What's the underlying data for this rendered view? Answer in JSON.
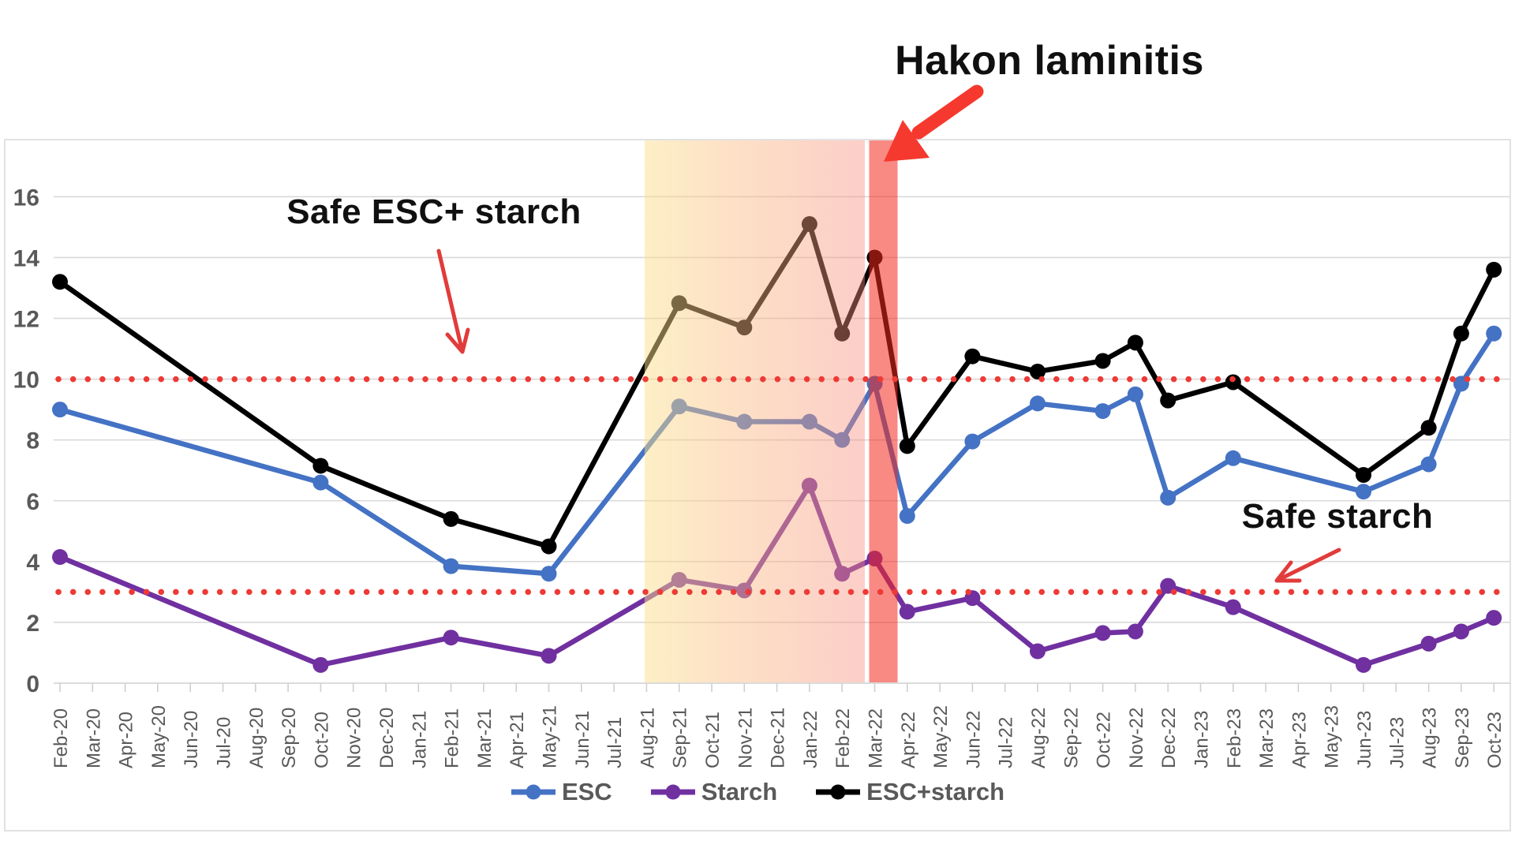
{
  "annotations": {
    "event": {
      "text": "Hakon laminitis"
    },
    "safe_esc": {
      "text": "Safe ESC+ starch"
    },
    "safe_starch": {
      "text": "Safe starch"
    }
  },
  "legend": [
    {
      "label": "ESC",
      "color": "#4472C4"
    },
    {
      "label": "Starch",
      "color": "#7030A0"
    },
    {
      "label": "ESC+starch",
      "color": "#000000"
    }
  ],
  "chart_data": {
    "type": "line",
    "title": "",
    "xlabel": "",
    "ylabel": "",
    "ylim": [
      0,
      16
    ],
    "yticks": [
      0,
      2,
      4,
      6,
      8,
      10,
      12,
      14,
      16
    ],
    "grid": "horizontal",
    "legend_position": "bottom",
    "axis_text_color": "#595959",
    "grid_color": "#d9d9d9",
    "x_categories": [
      "Feb-20",
      "Mar-20",
      "Apr-20",
      "May-20",
      "Jun-20",
      "Jul-20",
      "Aug-20",
      "Sep-20",
      "Oct-20",
      "Nov-20",
      "Dec-20",
      "Jan-21",
      "Feb-21",
      "Mar-21",
      "Apr-21",
      "May-21",
      "Jun-21",
      "Jul-21",
      "Aug-21",
      "Sep-21",
      "Oct-21",
      "Nov-21",
      "Dec-21",
      "Jan-22",
      "Feb-22",
      "Mar-22",
      "Apr-22",
      "May-22",
      "Jun-22",
      "Jul-22",
      "Aug-22",
      "Sep-22",
      "Oct-22",
      "Nov-22",
      "Dec-22",
      "Jan-23",
      "Feb-23",
      "Mar-23",
      "Apr-23",
      "May-23",
      "Jun-23",
      "Jul-23",
      "Aug-23",
      "Sep-23",
      "Oct-23"
    ],
    "series": [
      {
        "name": "ESC",
        "color": "#4472C4",
        "data": [
          {
            "x": "Feb-20",
            "y": 9.0
          },
          {
            "x": "Oct-20",
            "y": 6.6
          },
          {
            "x": "Feb-21",
            "y": 3.85
          },
          {
            "x": "May-21",
            "y": 3.6
          },
          {
            "x": "Sep-21",
            "y": 9.1
          },
          {
            "x": "Nov-21",
            "y": 8.6
          },
          {
            "x": "Jan-22",
            "y": 8.6
          },
          {
            "x": "Feb-22",
            "y": 8.0
          },
          {
            "x": "Mar-22",
            "y": 9.85
          },
          {
            "x": "Apr-22",
            "y": 5.5
          },
          {
            "x": "Jun-22",
            "y": 7.95
          },
          {
            "x": "Aug-22",
            "y": 9.2
          },
          {
            "x": "Oct-22",
            "y": 8.95
          },
          {
            "x": "Nov-22",
            "y": 9.5
          },
          {
            "x": "Dec-22",
            "y": 6.1
          },
          {
            "x": "Feb-23",
            "y": 7.4
          },
          {
            "x": "Jun-23",
            "y": 6.3
          },
          {
            "x": "Aug-23",
            "y": 7.2
          },
          {
            "x": "Sep-23",
            "y": 9.85
          },
          {
            "x": "Oct-23",
            "y": 11.5
          }
        ]
      },
      {
        "name": "Starch",
        "color": "#7030A0",
        "data": [
          {
            "x": "Feb-20",
            "y": 4.15
          },
          {
            "x": "Oct-20",
            "y": 0.6
          },
          {
            "x": "Feb-21",
            "y": 1.5
          },
          {
            "x": "May-21",
            "y": 0.9
          },
          {
            "x": "Sep-21",
            "y": 3.4
          },
          {
            "x": "Nov-21",
            "y": 3.05
          },
          {
            "x": "Jan-22",
            "y": 6.5
          },
          {
            "x": "Feb-22",
            "y": 3.6
          },
          {
            "x": "Mar-22",
            "y": 4.1
          },
          {
            "x": "Apr-22",
            "y": 2.35
          },
          {
            "x": "Jun-22",
            "y": 2.8
          },
          {
            "x": "Aug-22",
            "y": 1.05
          },
          {
            "x": "Oct-22",
            "y": 1.65
          },
          {
            "x": "Nov-22",
            "y": 1.7
          },
          {
            "x": "Dec-22",
            "y": 3.2
          },
          {
            "x": "Feb-23",
            "y": 2.5
          },
          {
            "x": "Jun-23",
            "y": 0.6
          },
          {
            "x": "Aug-23",
            "y": 1.3
          },
          {
            "x": "Sep-23",
            "y": 1.7
          },
          {
            "x": "Oct-23",
            "y": 2.15
          }
        ]
      },
      {
        "name": "ESC+starch",
        "color": "#000000",
        "data": [
          {
            "x": "Feb-20",
            "y": 13.2
          },
          {
            "x": "Oct-20",
            "y": 7.15
          },
          {
            "x": "Feb-21",
            "y": 5.4
          },
          {
            "x": "May-21",
            "y": 4.5
          },
          {
            "x": "Sep-21",
            "y": 12.5
          },
          {
            "x": "Nov-21",
            "y": 11.7
          },
          {
            "x": "Jan-22",
            "y": 15.1
          },
          {
            "x": "Feb-22",
            "y": 11.5
          },
          {
            "x": "Mar-22",
            "y": 14.0
          },
          {
            "x": "Apr-22",
            "y": 7.8
          },
          {
            "x": "Jun-22",
            "y": 10.75
          },
          {
            "x": "Aug-22",
            "y": 10.25
          },
          {
            "x": "Oct-22",
            "y": 10.6
          },
          {
            "x": "Nov-22",
            "y": 11.2
          },
          {
            "x": "Dec-22",
            "y": 9.3
          },
          {
            "x": "Feb-23",
            "y": 9.9
          },
          {
            "x": "Jun-23",
            "y": 6.85
          },
          {
            "x": "Aug-23",
            "y": 8.4
          },
          {
            "x": "Sep-23",
            "y": 11.5
          },
          {
            "x": "Oct-23",
            "y": 13.6
          }
        ]
      }
    ],
    "thresholds": [
      {
        "label": "Safe ESC+ starch",
        "value": 10,
        "style": "dotted",
        "color": "#ee3a36"
      },
      {
        "label": "Safe starch",
        "value": 3,
        "style": "dotted",
        "color": "#ee3a36"
      }
    ],
    "highlight_region": {
      "from": "Aug-21",
      "to": "Feb-22",
      "gradient": [
        "#fbdf8c",
        "#f98c7c"
      ]
    },
    "event_band": {
      "month": "Mar-22",
      "color": "#f4281e",
      "label": "Hakon laminitis"
    }
  }
}
